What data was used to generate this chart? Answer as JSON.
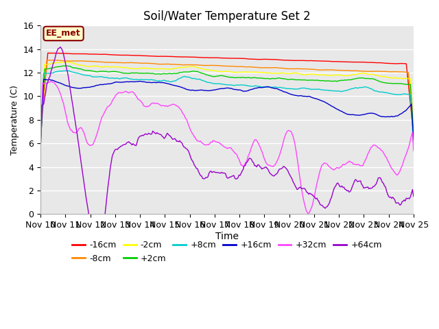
{
  "title": "Soil/Water Temperature Set 2",
  "xlabel": "Time",
  "ylabel": "Temperature (C)",
  "ylim": [
    0,
    16
  ],
  "bg_color": "#e8e8e8",
  "annotation_text": "EE_met",
  "annotation_bg": "#ffffcc",
  "annotation_border": "#8b0000",
  "series": [
    {
      "label": "-16cm",
      "color": "#ff0000"
    },
    {
      "label": "-8cm",
      "color": "#ff8800"
    },
    {
      "label": "-2cm",
      "color": "#ffff00"
    },
    {
      "label": "+2cm",
      "color": "#00cc00"
    },
    {
      "label": "+8cm",
      "color": "#00cccc"
    },
    {
      "label": "+16cm",
      "color": "#0000cc"
    },
    {
      "label": "+32cm",
      "color": "#ff44ff"
    },
    {
      "label": "+64cm",
      "color": "#9900cc"
    }
  ],
  "x_tick_labels": [
    "Nov 10",
    "Nov 11",
    "Nov 12",
    "Nov 13",
    "Nov 14",
    "Nov 15",
    "Nov 16",
    "Nov 17",
    "Nov 18",
    "Nov 19",
    "Nov 20",
    "Nov 21",
    "Nov 22",
    "Nov 23",
    "Nov 24",
    "Nov 25"
  ]
}
